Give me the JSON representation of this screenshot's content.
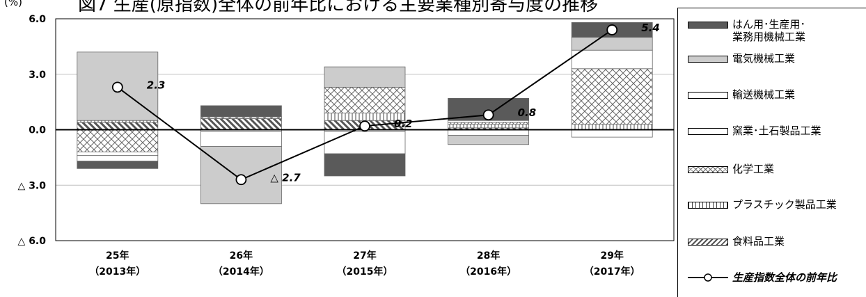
{
  "unit_label": "(%)",
  "title": "図7 生産(原指数)全体の前年比における主要業種別寄与度の推移",
  "colors": {
    "machinery": "#5a5a5a",
    "electrical": "#cccccc",
    "transport": "#ffffff",
    "ceramics": "#ffffff",
    "chemical": "#d9d9d9",
    "plastic": "#ffffff",
    "food": "#7f7f7f",
    "line": "#000000",
    "grid": "#bfbfbf"
  },
  "legend": [
    {
      "key": "machinery",
      "label": "はん用･生産用･\n業務用機械工業"
    },
    {
      "key": "electrical",
      "label": "電気機械工業"
    },
    {
      "key": "transport",
      "label": "輸送機械工業"
    },
    {
      "key": "ceramics",
      "label": "窯業･土石製品工業"
    },
    {
      "key": "chemical",
      "label": "化学工業"
    },
    {
      "key": "plastic",
      "label": "プラスチック製品工業"
    },
    {
      "key": "food",
      "label": "食料品工業"
    },
    {
      "key": "total",
      "label": "生産指数全体の前年比"
    }
  ],
  "chart_data": {
    "type": "bar",
    "stacked": true,
    "categories": [
      {
        "year": "25年",
        "western": "（2013年）"
      },
      {
        "year": "26年",
        "western": "（2014年）"
      },
      {
        "year": "27年",
        "western": "（2015年）"
      },
      {
        "year": "28年",
        "western": "（2016年）"
      },
      {
        "year": "29年",
        "western": "（2017年）"
      }
    ],
    "y_ticks": [
      {
        "value": 6.0,
        "label": "6.0"
      },
      {
        "value": 3.0,
        "label": "3.0"
      },
      {
        "value": 0.0,
        "label": "0.0"
      },
      {
        "value": -3.0,
        "label": "△ 3.0"
      },
      {
        "value": -6.0,
        "label": "△ 6.0"
      }
    ],
    "ylim": [
      -6,
      6
    ],
    "grid": true,
    "legend_position": "right",
    "series": [
      {
        "key": "food",
        "name": "食料品工業",
        "values": [
          0.4,
          0.6,
          0.5,
          0.1,
          0.0
        ]
      },
      {
        "key": "plastic",
        "name": "プラスチック製品工業",
        "values": [
          0.1,
          0.0,
          0.4,
          0.2,
          0.3
        ]
      },
      {
        "key": "chemical",
        "name": "化学工業",
        "values": [
          -1.2,
          0.1,
          1.4,
          0.1,
          3.0
        ]
      },
      {
        "key": "ceramics",
        "name": "窯業･土石製品工業",
        "values": [
          -0.2,
          -0.1,
          -0.1,
          0.1,
          -0.4
        ]
      },
      {
        "key": "transport",
        "name": "輸送機械工業",
        "values": [
          -0.3,
          -0.8,
          -1.2,
          -0.3,
          1.0
        ]
      },
      {
        "key": "electrical",
        "name": "電気機械工業",
        "values": [
          3.7,
          -3.1,
          1.1,
          -0.5,
          0.7
        ]
      },
      {
        "key": "machinery",
        "name": "はん用･生産用･業務用機械工業",
        "values": [
          -0.4,
          0.6,
          -1.2,
          1.2,
          0.8
        ]
      }
    ],
    "total": {
      "name": "生産指数全体の前年比",
      "values": [
        2.3,
        -2.7,
        0.2,
        0.8,
        5.4
      ],
      "labels": [
        "2.3",
        "△ 2.7",
        "0.2",
        "0.8",
        "5.4"
      ]
    }
  }
}
